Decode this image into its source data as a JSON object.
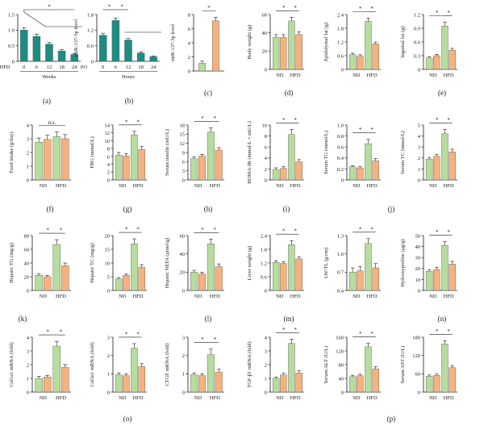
{
  "colors": {
    "teal": "#1e8c82",
    "green": "#b6dc9e",
    "orange": "#f5b27e",
    "ink": "#1a1a1a"
  },
  "panel_labels": [
    "(a)",
    "(b)",
    "(c)",
    "(d)",
    "(e)",
    "(f)",
    "(g)",
    "(h)",
    "(i)",
    "(j)",
    "(k)",
    "(l)",
    "(m)",
    "(n)",
    "(o)",
    "(p)"
  ],
  "group_labels": {
    "nd": "ND",
    "hfd": "HFD"
  },
  "chart_data": [
    {
      "id": "a",
      "type": "bar",
      "ylabel": "miR-137-3p level",
      "ylim": [
        0,
        1.5
      ],
      "yticks": [
        "0",
        "0.5",
        "1.0",
        "1.5"
      ],
      "row_label": "HFD",
      "categories": [
        "0",
        "6",
        "12",
        "18",
        "24"
      ],
      "xlabel": "Weeks",
      "values": [
        1.0,
        0.8,
        0.55,
        0.33,
        0.22
      ],
      "errors": [
        0.08,
        0.07,
        0.05,
        0.04,
        0.03
      ],
      "sig": [
        "*"
      ]
    },
    {
      "id": "b",
      "type": "bar",
      "ylabel": "miR-137-3p level",
      "ylim": [
        0,
        1.8
      ],
      "yticks": [
        "0",
        "0.6",
        "1.2",
        "1.8"
      ],
      "row_label": "PO",
      "categories": [
        "0",
        "6",
        "12",
        "18",
        "24"
      ],
      "xlabel": "Hours",
      "values": [
        1.0,
        1.57,
        0.82,
        0.32,
        0.18
      ],
      "errors": [
        0.08,
        0.09,
        0.06,
        0.04,
        0.03
      ],
      "sig": [
        "*",
        "*"
      ]
    },
    {
      "id": "c",
      "type": "bar",
      "ylabel": "miR-137-3p level",
      "ylim": [
        0,
        8
      ],
      "yticks": [
        "0",
        "2",
        "4",
        "6",
        "8"
      ],
      "values": [
        1.1,
        7.1
      ],
      "errors": [
        0.3,
        0.5
      ],
      "sig": [
        "*"
      ]
    },
    {
      "id": "d",
      "type": "bar",
      "ylabel": "Body weight (g)",
      "ylim": [
        0,
        60
      ],
      "yticks": [
        "0",
        "20",
        "40",
        "60"
      ],
      "values": [
        35,
        35,
        53,
        38
      ],
      "errors": [
        3,
        3,
        4,
        3
      ],
      "sig": [
        "*",
        "*"
      ]
    },
    {
      "id": "e1",
      "type": "bar",
      "ylabel": "Epididymal fat (g)",
      "ylim": [
        0,
        2.4
      ],
      "yticks": [
        "0",
        "0.6",
        "1.2",
        "1.8",
        "2.4"
      ],
      "values": [
        0.65,
        0.58,
        2.1,
        1.12
      ],
      "errors": [
        0.06,
        0.06,
        0.15,
        0.08
      ],
      "sig": [
        "*",
        "*"
      ]
    },
    {
      "id": "e2",
      "type": "bar",
      "ylabel": "Inguinal fat (g)",
      "ylim": [
        0,
        1.2
      ],
      "yticks": [
        "0",
        "0.3",
        "0.6",
        "0.9",
        "1.2"
      ],
      "values": [
        0.25,
        0.3,
        0.95,
        0.42
      ],
      "errors": [
        0.03,
        0.03,
        0.08,
        0.04
      ],
      "sig": [
        "*",
        "*"
      ]
    },
    {
      "id": "f",
      "type": "bar",
      "ylabel": "Food intake (g/day)",
      "ylim": [
        0,
        4
      ],
      "yticks": [
        "0",
        "1",
        "2",
        "3",
        "4"
      ],
      "values": [
        2.75,
        2.95,
        3.15,
        3.0
      ],
      "errors": [
        0.3,
        0.3,
        0.35,
        0.3
      ],
      "sig": [
        "n.s."
      ]
    },
    {
      "id": "g",
      "type": "bar",
      "ylabel": "FBG (mmol/L)",
      "ylim": [
        0,
        14
      ],
      "yticks": [
        "0",
        "2",
        "4",
        "6",
        "8",
        "10",
        "12",
        "14"
      ],
      "values": [
        6.3,
        6.1,
        11.5,
        7.8
      ],
      "errors": [
        0.7,
        0.6,
        0.9,
        0.7
      ],
      "sig": [
        "*",
        "*"
      ]
    },
    {
      "id": "h",
      "type": "bar",
      "ylabel": "Serum insulin (mU/L)",
      "ylim": [
        0,
        18
      ],
      "yticks": [
        "0",
        "3",
        "6",
        "9",
        "12",
        "15",
        "18"
      ],
      "values": [
        7.0,
        7.8,
        15.7,
        9.8
      ],
      "errors": [
        0.6,
        0.6,
        1.4,
        0.8
      ],
      "sig": [
        "*",
        "*"
      ]
    },
    {
      "id": "i",
      "type": "bar",
      "ylabel": "HOMA-IR (mmol/L × mU/L)",
      "ylim": [
        0,
        10
      ],
      "yticks": [
        "0",
        "2",
        "4",
        "6",
        "8",
        "10"
      ],
      "values": [
        1.9,
        2.1,
        8.3,
        3.3
      ],
      "errors": [
        0.3,
        0.3,
        0.9,
        0.4
      ],
      "sig": [
        "*",
        "*"
      ]
    },
    {
      "id": "j1",
      "type": "bar",
      "ylabel": "Serum TG (mmol/L)",
      "ylim": [
        0,
        1.0
      ],
      "yticks": [
        "0",
        "0.2",
        "0.4",
        "0.6",
        "0.8",
        "1.0"
      ],
      "values": [
        0.24,
        0.22,
        0.66,
        0.35
      ],
      "errors": [
        0.02,
        0.02,
        0.08,
        0.04
      ],
      "sig": [
        "*",
        "*"
      ]
    },
    {
      "id": "j2",
      "type": "bar",
      "ylabel": "Serum TC (mmol/L)",
      "ylim": [
        0,
        5
      ],
      "yticks": [
        "0",
        "1",
        "2",
        "3",
        "4",
        "5"
      ],
      "values": [
        1.9,
        2.15,
        4.2,
        2.55
      ],
      "errors": [
        0.15,
        0.15,
        0.4,
        0.25
      ],
      "sig": [
        "*",
        "*"
      ]
    },
    {
      "id": "k1",
      "type": "bar",
      "ylabel": "Hepatic TG (mg/g)",
      "ylim": [
        0,
        80
      ],
      "yticks": [
        "0",
        "20",
        "40",
        "60",
        "80"
      ],
      "values": [
        22,
        20,
        67,
        36
      ],
      "errors": [
        2.5,
        2,
        7,
        4
      ],
      "sig": [
        "*",
        "*"
      ]
    },
    {
      "id": "k2",
      "type": "bar",
      "ylabel": "Hepatic TC (mg/g)",
      "ylim": [
        0,
        20
      ],
      "yticks": [
        "0",
        "5",
        "10",
        "15",
        "20"
      ],
      "values": [
        4.2,
        5.5,
        17.0,
        8.5
      ],
      "errors": [
        0.5,
        0.5,
        1.8,
        0.9
      ],
      "sig": [
        "*",
        "*"
      ]
    },
    {
      "id": "l",
      "type": "bar",
      "ylabel": "Hepatic NEFA (μmol/g)",
      "ylim": [
        0,
        60
      ],
      "yticks": [
        "0",
        "20",
        "40",
        "60"
      ],
      "values": [
        20,
        18,
        51,
        26
      ],
      "errors": [
        2,
        2,
        5,
        3
      ],
      "sig": [
        "*",
        "*"
      ]
    },
    {
      "id": "m1",
      "type": "bar",
      "ylabel": "Liver weight (g)",
      "ylim": [
        0,
        2.4
      ],
      "yticks": [
        "0",
        "0.6",
        "1.2",
        "1.8",
        "2.4"
      ],
      "values": [
        1.23,
        1.18,
        2.0,
        1.38
      ],
      "errors": [
        0.07,
        0.07,
        0.18,
        0.08
      ],
      "sig": [
        "*",
        "*"
      ]
    },
    {
      "id": "m2",
      "type": "bar",
      "ylabel": "LW/TL (g/cm)",
      "ylim": [
        0.4,
        1.3
      ],
      "yticks": [
        "0.4",
        "0.7",
        "1.0",
        "1.3"
      ],
      "values": [
        0.7,
        0.72,
        1.17,
        0.77
      ],
      "errors": [
        0.07,
        0.07,
        0.08,
        0.07
      ],
      "sig": [
        "*",
        "*"
      ]
    },
    {
      "id": "n",
      "type": "bar",
      "ylabel": "Hydroxyproline (μg/g)",
      "ylim": [
        0,
        50
      ],
      "yticks": [
        "0",
        "10",
        "20",
        "30",
        "40",
        "50"
      ],
      "values": [
        17.5,
        19,
        41,
        24
      ],
      "errors": [
        1.5,
        2,
        3.5,
        2.5
      ],
      "sig": [
        "*",
        "*"
      ]
    },
    {
      "id": "o1",
      "type": "bar",
      "ylabel": "Col1a1 mRNA (fold)",
      "ylim": [
        0,
        4
      ],
      "yticks": [
        "0",
        "1",
        "2",
        "3",
        "4"
      ],
      "values": [
        1.0,
        1.1,
        3.35,
        1.8
      ],
      "errors": [
        0.15,
        0.12,
        0.35,
        0.2
      ],
      "sig": [
        "*",
        "*"
      ]
    },
    {
      "id": "o2",
      "type": "bar",
      "ylabel": "Col3a1 mRNA (fold)",
      "ylim": [
        0,
        3
      ],
      "yticks": [
        "0",
        "1",
        "2",
        "3"
      ],
      "values": [
        0.95,
        0.9,
        2.4,
        1.4
      ],
      "errors": [
        0.1,
        0.1,
        0.25,
        0.15
      ],
      "sig": [
        "*",
        "*"
      ]
    },
    {
      "id": "o3",
      "type": "bar",
      "ylabel": "CTGF mRNA (fold)",
      "ylim": [
        0,
        3
      ],
      "yticks": [
        "0",
        "1",
        "2",
        "3"
      ],
      "values": [
        0.95,
        0.9,
        2.05,
        1.1
      ],
      "errors": [
        0.1,
        0.1,
        0.3,
        0.15
      ],
      "sig": [
        "*",
        "*"
      ]
    },
    {
      "id": "p1",
      "type": "bar",
      "ylabel": "TGF-β1 mRNA (fold)",
      "ylim": [
        0,
        4
      ],
      "yticks": [
        "0",
        "1",
        "2",
        "3",
        "4"
      ],
      "values": [
        1.0,
        1.25,
        3.55,
        1.4
      ],
      "errors": [
        0.1,
        0.12,
        0.3,
        0.15
      ],
      "sig": [
        "*",
        "*"
      ]
    },
    {
      "id": "p2",
      "type": "bar",
      "ylabel": "Serum ALT (U/L)",
      "ylim": [
        0,
        160
      ],
      "yticks": [
        "0",
        "40",
        "80",
        "120",
        "160"
      ],
      "values": [
        45,
        48,
        132,
        68
      ],
      "errors": [
        4,
        4,
        10,
        6
      ],
      "sig": [
        "*",
        "*"
      ]
    },
    {
      "id": "p3",
      "type": "bar",
      "ylabel": "Serum AST (U/L)",
      "ylim": [
        0,
        180
      ],
      "yticks": [
        "0",
        "60",
        "120",
        "180"
      ],
      "values": [
        52,
        55,
        158,
        80
      ],
      "errors": [
        4,
        4,
        10,
        7
      ],
      "sig": [
        "*",
        "*"
      ]
    }
  ]
}
